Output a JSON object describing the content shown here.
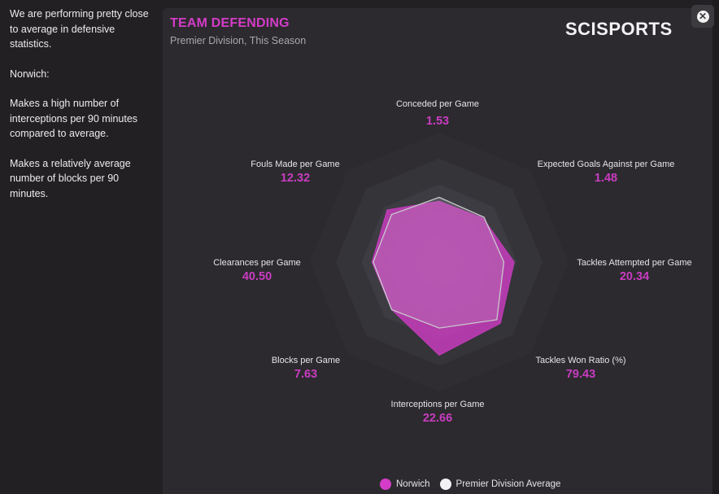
{
  "sidebar": {
    "paragraphs": [
      "We are performing pretty close to average in defensive statistics.",
      "Norwich:",
      "Makes a high number of interceptions per 90 minutes compared to average.",
      "Makes a relatively average number of blocks per 90 minutes."
    ]
  },
  "panel": {
    "title": "TEAM DEFENDING",
    "subtitle": "Premier Division, This Season",
    "brand": "SCISPORTS",
    "close_icon": "close-icon"
  },
  "colors": {
    "norwich": "#d43cc8",
    "average": "#f4f1f4",
    "accent": "#c93cc1"
  },
  "chart_data": {
    "type": "radar",
    "title": "TEAM DEFENDING",
    "subtitle": "Premier Division, This Season",
    "rings": 5,
    "range": [
      0,
      1
    ],
    "axes": [
      {
        "label": "Conceded per Game",
        "value": "1.53"
      },
      {
        "label": "Expected Goals Against per Game",
        "value": "1.48"
      },
      {
        "label": "Tackles Attempted per Game",
        "value": "20.34"
      },
      {
        "label": "Tackles Won Ratio (%)",
        "value": "79.43"
      },
      {
        "label": "Interceptions per Game",
        "value": "22.66"
      },
      {
        "label": "Blocks per Game",
        "value": "7.63"
      },
      {
        "label": "Clearances per Game",
        "value": "40.50"
      },
      {
        "label": "Fouls Made per Game",
        "value": "12.32"
      }
    ],
    "series": [
      {
        "name": "Norwich",
        "values": [
          0.47,
          0.48,
          0.58,
          0.67,
          0.72,
          0.52,
          0.52,
          0.57
        ]
      },
      {
        "name": "Premier Division Average",
        "values": [
          0.5,
          0.49,
          0.5,
          0.63,
          0.51,
          0.52,
          0.51,
          0.52
        ]
      }
    ],
    "legend": [
      "Norwich",
      "Premier Division Average"
    ],
    "legend_position": "bottom"
  }
}
